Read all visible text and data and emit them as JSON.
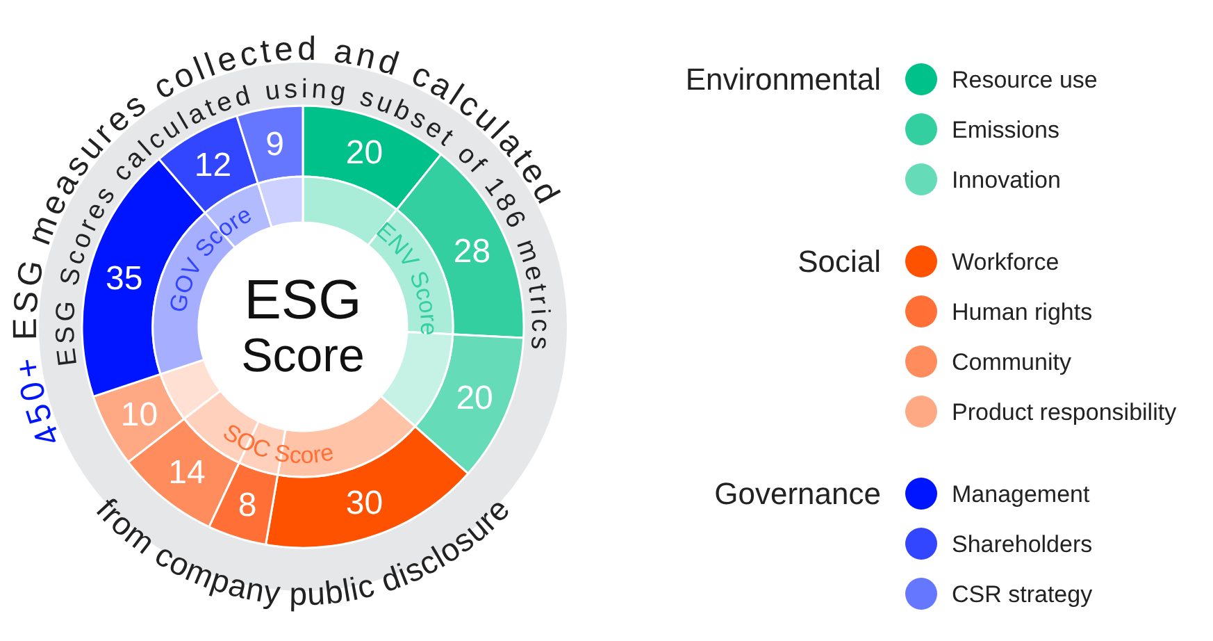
{
  "chart_data": {
    "type": "donut",
    "title": "ESG Score",
    "categories": [
      "Resource use",
      "Emissions",
      "Innovation",
      "Workforce",
      "Human rights",
      "Community",
      "Product responsibility",
      "Management",
      "Shareholders",
      "CSR strategy"
    ],
    "series": [
      {
        "colors": [
          "#00c18a",
          "#33cfa0",
          "#66dbb8",
          "#ff5200",
          "#ff6f36",
          "#ff8c5c",
          "#ffa984",
          "#0015ff",
          "#3346ff",
          "#6677ff"
        ],
        "values": [
          20,
          28,
          20,
          30,
          8,
          14,
          10,
          35,
          12,
          9
        ],
        "value_labels": [
          "20",
          "28",
          "20",
          "30",
          "8",
          "14",
          "10",
          "35",
          "12",
          "9"
        ]
      },
      {
        "colors": [
          "#a9ecd8",
          "#a9ecd8",
          "#c6f2e5",
          "#ffc3a8",
          "#ffd0bb",
          "#ffd0bb",
          "#ffe0d3",
          "#a6aeff",
          "#b3bbff",
          "#ccd1ff"
        ],
        "values": [
          10.75,
          15.05,
          10.75,
          16.13,
          4.3,
          7.53,
          5.38,
          18.82,
          6.45,
          4.84
        ]
      }
    ],
    "annotations": [
      "450+ ESG measures collected and calculated",
      "ESG Scores calculated using subset of 186 metrics",
      "from company public disclosure",
      {
        "text": "Environmental",
        "x": "Resource use"
      },
      {
        "text": "Social",
        "x": "Workforce"
      },
      {
        "text": "Governance",
        "x": "Management"
      },
      {
        "text": "ENV Score",
        "x": "Resource use"
      },
      {
        "text": "SOC Score",
        "x": "Workforce"
      },
      {
        "text": "GOV Score",
        "x": "Management"
      }
    ],
    "legend": "right"
  }
}
